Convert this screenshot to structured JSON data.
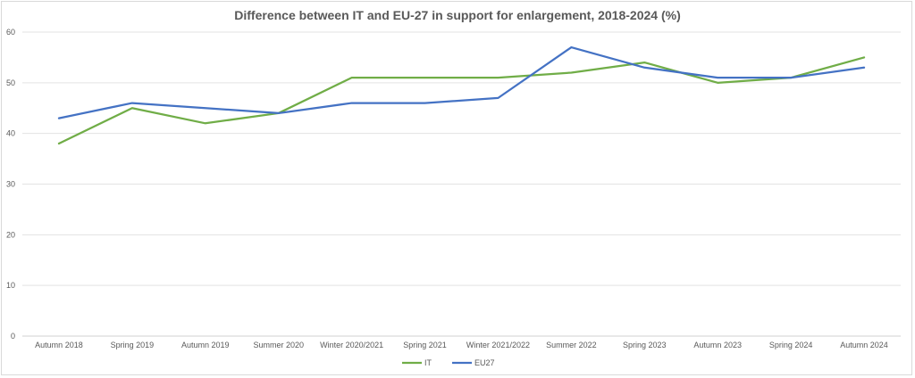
{
  "chart_data": {
    "type": "line",
    "title": "Difference between IT and EU-27 in support for enlargement, 2018-2024 (%)",
    "categories": [
      "Autumn 2018",
      "Spring 2019",
      "Autumn 2019",
      "Summer 2020",
      "Winter 2020/2021",
      "Spring 2021",
      "Winter 2021/2022",
      "Summer 2022",
      "Spring 2023",
      "Autumn 2023",
      "Spring 2024",
      "Autumn 2024"
    ],
    "series": [
      {
        "name": "IT",
        "color": "#70ad47",
        "values": [
          38,
          45,
          42,
          44,
          51,
          51,
          51,
          52,
          54,
          50,
          51,
          55
        ]
      },
      {
        "name": "EU27",
        "color": "#4472c4",
        "values": [
          43,
          46,
          45,
          44,
          46,
          46,
          47,
          57,
          53,
          51,
          51,
          53
        ]
      }
    ],
    "ylim": [
      0,
      60
    ],
    "yticks": [
      0,
      10,
      20,
      30,
      40,
      50,
      60
    ],
    "grid": true,
    "legend_position": "bottom",
    "xlabel": "",
    "ylabel": ""
  }
}
